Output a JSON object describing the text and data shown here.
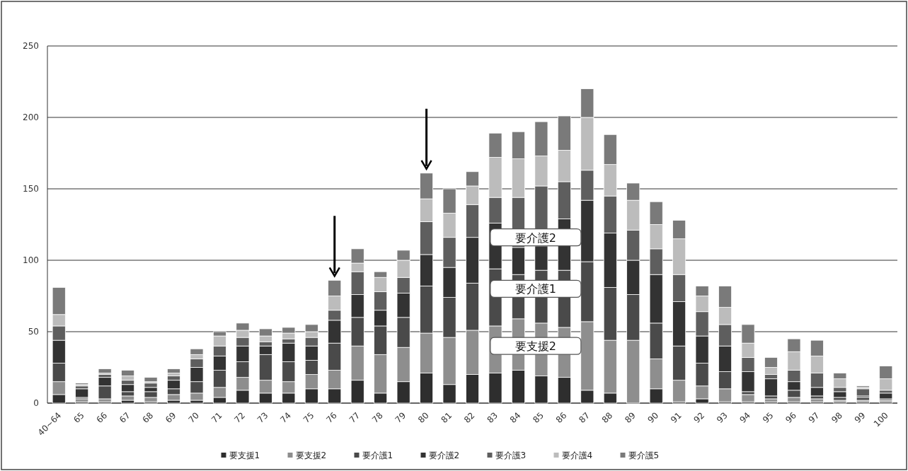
{
  "chart_data": {
    "type": "bar",
    "stacked": true,
    "categories": [
      "40~64",
      "65",
      "66",
      "67",
      "68",
      "69",
      "70",
      "71",
      "72",
      "73",
      "74",
      "75",
      "76",
      "77",
      "78",
      "79",
      "80",
      "81",
      "82",
      "83",
      "84",
      "85",
      "86",
      "87",
      "88",
      "89",
      "90",
      "91",
      "92",
      "93",
      "94",
      "95",
      "96",
      "97",
      "98",
      "99",
      "100"
    ],
    "series": [
      {
        "name": "要支援1",
        "color": "#2e2e2e",
        "values": [
          6,
          1,
          1,
          2,
          1,
          2,
          2,
          4,
          9,
          7,
          7,
          10,
          10,
          16,
          7,
          15,
          21,
          13,
          20,
          21,
          23,
          19,
          18,
          9,
          7,
          0,
          10,
          1,
          3,
          1,
          1,
          1,
          1,
          1,
          1,
          1,
          1
        ]
      },
      {
        "name": "要支援2",
        "color": "#8e8e8e",
        "values": [
          9,
          2,
          2,
          3,
          3,
          4,
          5,
          7,
          9,
          9,
          8,
          10,
          13,
          24,
          27,
          24,
          28,
          33,
          31,
          33,
          36,
          37,
          35,
          48,
          37,
          44,
          21,
          15,
          9,
          9,
          5,
          2,
          3,
          2,
          1,
          1,
          1
        ]
      },
      {
        "name": "要介護1",
        "color": "#4a4a4a",
        "values": [
          13,
          1,
          9,
          3,
          4,
          4,
          8,
          12,
          11,
          18,
          14,
          10,
          19,
          20,
          20,
          21,
          33,
          28,
          33,
          40,
          31,
          37,
          40,
          42,
          37,
          32,
          25,
          24,
          16,
          12,
          2,
          2,
          5,
          2,
          2,
          2,
          1
        ]
      },
      {
        "name": "要介護2",
        "color": "#333333",
        "values": [
          16,
          6,
          6,
          5,
          3,
          6,
          10,
          10,
          11,
          6,
          13,
          10,
          16,
          16,
          11,
          17,
          22,
          21,
          32,
          32,
          19,
          17,
          36,
          43,
          38,
          24,
          34,
          31,
          19,
          18,
          14,
          12,
          6,
          6,
          4,
          1,
          4
        ]
      },
      {
        "name": "要介護3",
        "color": "#5e5e5e",
        "values": [
          10,
          2,
          2,
          3,
          3,
          3,
          6,
          7,
          6,
          3,
          3,
          6,
          7,
          16,
          13,
          11,
          23,
          21,
          23,
          18,
          35,
          42,
          26,
          21,
          26,
          21,
          18,
          19,
          17,
          15,
          10,
          3,
          8,
          10,
          3,
          5,
          2
        ]
      },
      {
        "name": "要介護4",
        "color": "#bcbcbc",
        "values": [
          8,
          1,
          1,
          3,
          1,
          2,
          3,
          7,
          5,
          4,
          4,
          4,
          10,
          6,
          10,
          12,
          16,
          17,
          13,
          28,
          27,
          21,
          22,
          37,
          22,
          21,
          17,
          25,
          11,
          12,
          10,
          5,
          13,
          12,
          6,
          1,
          8
        ]
      },
      {
        "name": "要介護5",
        "color": "#7a7a7a",
        "values": [
          19,
          1,
          3,
          4,
          3,
          3,
          4,
          3,
          5,
          5,
          4,
          5,
          11,
          10,
          4,
          7,
          18,
          17,
          10,
          17,
          19,
          24,
          24,
          20,
          21,
          12,
          16,
          13,
          7,
          15,
          13,
          7,
          9,
          11,
          4,
          1,
          9
        ]
      }
    ],
    "ylim": [
      0,
      250
    ],
    "yticks": [
      0,
      50,
      100,
      150,
      200,
      250
    ],
    "grid": "y",
    "legend": "bottom",
    "annotations": [
      {
        "text": "要介護2",
        "x": "85",
        "y": 116
      },
      {
        "text": "要介護1",
        "x": "85",
        "y": 80
      },
      {
        "text": "要支援2",
        "x": "85",
        "y": 40
      }
    ]
  }
}
